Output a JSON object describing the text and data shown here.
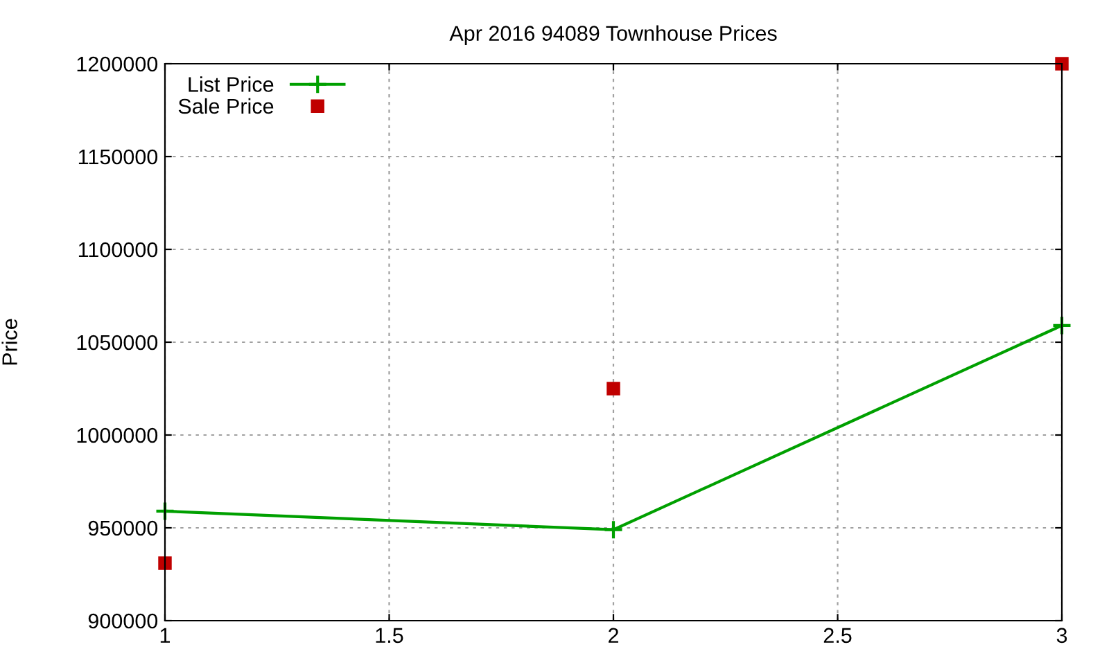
{
  "chart_data": {
    "type": "line",
    "title": "Apr 2016 94089 Townhouse Prices",
    "ylabel": "Price",
    "x": [
      1,
      2,
      3
    ],
    "series": [
      {
        "name": "List Price",
        "color": "#00a000",
        "marker": "cross",
        "values": [
          959000,
          949000,
          1059000
        ]
      },
      {
        "name": "Sale Price",
        "type": "scatter",
        "color": "#c00000",
        "marker": "square",
        "values": [
          931000,
          1025000,
          1200000
        ]
      }
    ],
    "xlim": [
      1,
      3
    ],
    "xticks": [
      1,
      1.5,
      2,
      2.5,
      3
    ],
    "ylim": [
      900000,
      1200000
    ],
    "yticks": [
      900000,
      950000,
      1000000,
      1050000,
      1100000,
      1150000,
      1200000
    ],
    "grid": true,
    "legend": "top left"
  }
}
